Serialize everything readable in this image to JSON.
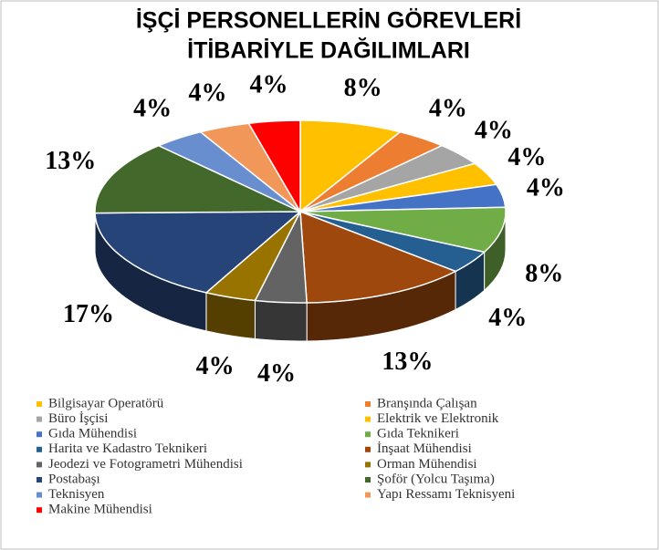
{
  "chart_data": {
    "type": "pie3d",
    "title": [
      "İŞÇİ PERSONELLERİN GÖREVLERİ",
      "İTİBARİYLE DAĞILIMLARI"
    ],
    "categories": [
      "Bilgisayar Operatörü",
      "Branşında Çalışan",
      "Büro İşçisi",
      "Elektrik ve Elektronik",
      "Gıda Mühendisi",
      "Gıda Teknikeri",
      "Harita ve Kadastro Teknikeri",
      "İnşaat Mühendisi",
      "Jeodezi ve Fotogrametri Mühendisi",
      "Orman Mühendisi",
      "Postabaşı",
      "Şoför (Yolcu Taşıma)",
      "Teknisyen",
      "Yapı Ressamı Teknisyeni",
      "Makine Mühendisi"
    ],
    "values": [
      8,
      4,
      4,
      4,
      4,
      8,
      4,
      13,
      4,
      4,
      17,
      13,
      4,
      4,
      4
    ],
    "value_labels": [
      "8%",
      "4%",
      "4%",
      "4%",
      "4%",
      "8%",
      "4%",
      "13%",
      "4%",
      "4%",
      "17%",
      "13%",
      "4%",
      "4%",
      "4%"
    ],
    "colors": [
      "#ffc000",
      "#ed7d31",
      "#a5a5a5",
      "#ffc000",
      "#4472c4",
      "#70ad47",
      "#255e91",
      "#9e480e",
      "#636363",
      "#997300",
      "#264478",
      "#43682b",
      "#698ed0",
      "#f1975a",
      "#ff0000"
    ],
    "legend": "bottom"
  }
}
